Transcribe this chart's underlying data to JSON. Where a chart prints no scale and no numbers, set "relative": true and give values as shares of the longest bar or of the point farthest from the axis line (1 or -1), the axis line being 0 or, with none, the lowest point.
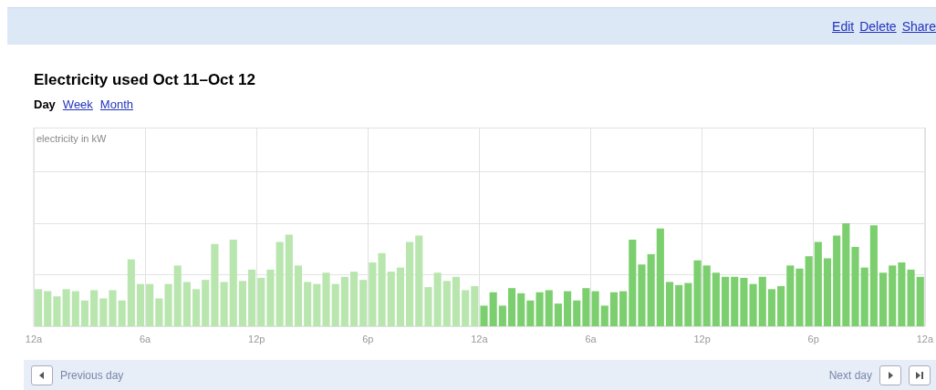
{
  "chart_data": {
    "type": "bar",
    "title": "Electricity used Oct 11–Oct 12",
    "annotations": [
      "electricity in kW",
      "Edit",
      "Delete",
      "Share",
      "Day",
      "Week",
      "Month",
      "Previous day",
      "Next day"
    ],
    "relative": true,
    "grid": true,
    "xlim": [
      "--10-11T00:00",
      "--10-13T00:00"
    ],
    "xticks": [
      {
        "value": "--10-11T00:00",
        "label": "12a"
      },
      {
        "value": "--10-11T06:00",
        "label": "6a"
      },
      {
        "value": "--10-11T12:00",
        "label": "12p"
      },
      {
        "value": "--10-11T18:00",
        "label": "6p"
      },
      {
        "value": "--10-12T00:00",
        "label": "12a"
      },
      {
        "value": "--10-12T06:00",
        "label": "6a"
      },
      {
        "value": "--10-12T12:00",
        "label": "12p"
      },
      {
        "value": "--10-12T18:00",
        "label": "6p"
      },
      {
        "value": "--10-13T00:00",
        "label": "12a"
      }
    ],
    "series": [
      {
        "color": "#b8e6ae",
        "x": [
          "--10-11T00:15",
          "--10-11T00:45",
          "--10-11T01:15",
          "--10-11T01:45",
          "--10-11T02:15",
          "--10-11T02:45",
          "--10-11T03:15",
          "--10-11T03:45",
          "--10-11T04:15",
          "--10-11T04:45",
          "--10-11T05:15",
          "--10-11T05:45",
          "--10-11T06:15",
          "--10-11T06:45",
          "--10-11T07:15",
          "--10-11T07:45",
          "--10-11T08:15",
          "--10-11T08:45",
          "--10-11T09:15",
          "--10-11T09:45",
          "--10-11T10:15",
          "--10-11T10:45",
          "--10-11T11:15",
          "--10-11T11:45",
          "--10-11T12:15",
          "--10-11T12:45",
          "--10-11T13:15",
          "--10-11T13:45",
          "--10-11T14:15",
          "--10-11T14:45",
          "--10-11T15:15",
          "--10-11T15:45",
          "--10-11T16:15",
          "--10-11T16:45",
          "--10-11T17:15",
          "--10-11T17:45",
          "--10-11T18:15",
          "--10-11T18:45",
          "--10-11T19:15",
          "--10-11T19:45",
          "--10-11T20:15",
          "--10-11T20:45",
          "--10-11T21:15",
          "--10-11T21:45",
          "--10-11T22:15",
          "--10-11T22:45",
          "--10-11T23:15",
          "--10-11T23:45"
        ],
        "values": [
          0.36,
          0.34,
          0.29,
          0.36,
          0.34,
          0.25,
          0.35,
          0.27,
          0.35,
          0.25,
          0.65,
          0.41,
          0.41,
          0.27,
          0.41,
          0.59,
          0.43,
          0.36,
          0.45,
          0.8,
          0.43,
          0.84,
          0.44,
          0.55,
          0.47,
          0.55,
          0.82,
          0.89,
          0.59,
          0.43,
          0.41,
          0.52,
          0.41,
          0.48,
          0.53,
          0.45,
          0.62,
          0.71,
          0.53,
          0.57,
          0.82,
          0.88,
          0.38,
          0.52,
          0.44,
          0.48,
          0.35,
          0.39
        ]
      },
      {
        "color": "#7ccf6e",
        "x": [
          "--10-12T00:15",
          "--10-12T00:45",
          "--10-12T01:15",
          "--10-12T01:45",
          "--10-12T02:15",
          "--10-12T02:45",
          "--10-12T03:15",
          "--10-12T03:45",
          "--10-12T04:15",
          "--10-12T04:45",
          "--10-12T05:15",
          "--10-12T05:45",
          "--10-12T06:15",
          "--10-12T06:45",
          "--10-12T07:15",
          "--10-12T07:45",
          "--10-12T08:15",
          "--10-12T08:45",
          "--10-12T09:15",
          "--10-12T09:45",
          "--10-12T10:15",
          "--10-12T10:45",
          "--10-12T11:15",
          "--10-12T11:45",
          "--10-12T12:15",
          "--10-12T12:45",
          "--10-12T13:15",
          "--10-12T13:45",
          "--10-12T14:15",
          "--10-12T14:45",
          "--10-12T15:15",
          "--10-12T15:45",
          "--10-12T16:15",
          "--10-12T16:45",
          "--10-12T17:15",
          "--10-12T17:45",
          "--10-12T18:15",
          "--10-12T18:45",
          "--10-12T19:15",
          "--10-12T19:45",
          "--10-12T20:15",
          "--10-12T20:45",
          "--10-12T21:15",
          "--10-12T21:45",
          "--10-12T22:15",
          "--10-12T22:45",
          "--10-12T23:15",
          "--10-12T23:45"
        ],
        "values": [
          0.2,
          0.33,
          0.2,
          0.37,
          0.32,
          0.25,
          0.33,
          0.35,
          0.22,
          0.34,
          0.25,
          0.37,
          0.34,
          0.2,
          0.33,
          0.34,
          0.84,
          0.6,
          0.7,
          0.95,
          0.43,
          0.4,
          0.42,
          0.64,
          0.59,
          0.52,
          0.48,
          0.48,
          0.47,
          0.41,
          0.48,
          0.36,
          0.39,
          0.59,
          0.56,
          0.68,
          0.82,
          0.66,
          0.88,
          1,
          0.77,
          0.57,
          0.98,
          0.52,
          0.59,
          0.62,
          0.55,
          0.48
        ]
      }
    ]
  }
}
